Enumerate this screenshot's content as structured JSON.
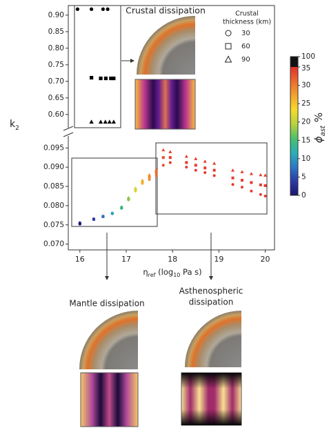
{
  "chart_data": {
    "type": "scatter",
    "annotations": [
      "Crustal dissipation",
      "Mantle dissipation",
      "Asthenospheric",
      "dissipation"
    ],
    "xlabel": [
      "η",
      "ref",
      " (log",
      "10",
      " Pa s)"
    ],
    "ylabel": [
      "k",
      "2"
    ],
    "xlim": [
      15.75,
      20.2
    ],
    "xticks": [
      16,
      17,
      18,
      19,
      20
    ],
    "legend": {
      "title": [
        "Crustal",
        "thickness (km)"
      ],
      "entries": [
        {
          "label": "30",
          "marker": "circle"
        },
        {
          "label": "60",
          "marker": "square"
        },
        {
          "label": "90",
          "marker": "triangle"
        }
      ]
    },
    "colorbar": {
      "label": [
        "ϕ",
        "ast",
        " %"
      ],
      "lim": [
        0,
        35
      ],
      "ticks": [
        0,
        5,
        10,
        15,
        20,
        25,
        30,
        35
      ],
      "top_tick": 100,
      "colors": [
        "#1b1670",
        "#2c3aa6",
        "#2d78c4",
        "#28b0b8",
        "#4cc06a",
        "#b8d23c",
        "#f5dc2a",
        "#f4a22c",
        "#ee6a2e",
        "#e2302a"
      ]
    },
    "panels": [
      {
        "ylim": [
          0.56,
          0.929
        ],
        "yticks": [
          {
            "value": 0.6,
            "label": "0.60"
          },
          0.65,
          {
            "value": 0.7,
            "label": "0.70"
          },
          0.75,
          {
            "value": 0.8,
            "label": "0.80"
          },
          0.85,
          {
            "value": 0.9,
            "label": "0.90"
          }
        ],
        "series": [
          {
            "marker": "circle",
            "color": "#000000",
            "x": [
              15.95,
              16.25,
              16.5,
              16.6
            ],
            "values": [
              0.918,
              0.918,
              0.918,
              0.918
            ]
          },
          {
            "marker": "square",
            "color": "#000000",
            "x": [
              16.25,
              16.45,
              16.56,
              16.67,
              16.73
            ],
            "values": [
              0.711,
              0.709,
              0.709,
              0.709,
              0.709
            ]
          },
          {
            "marker": "triangle",
            "color": "#000000",
            "x": [
              16.25,
              16.45,
              16.55,
              16.64,
              16.73
            ],
            "values": [
              0.578,
              0.578,
              0.578,
              0.578,
              0.578
            ]
          }
        ]
      },
      {
        "ylim": [
          0.0685,
          0.0981
        ],
        "yticks": [
          {
            "value": 0.07,
            "label": "0.070"
          },
          0.075,
          {
            "value": 0.08,
            "label": "0.080"
          },
          0.085,
          {
            "value": 0.09,
            "label": "0.090"
          },
          0.095
        ],
        "series": [
          {
            "marker": "circle",
            "x": [
              16,
              16.3,
              16.5,
              16.7,
              16.9,
              17.05,
              17.2,
              17.35,
              17.5,
              17.65,
              17.8,
              17.95,
              18.3,
              18.5,
              18.7,
              18.9,
              19.3,
              19.5,
              19.7,
              19.9,
              20
            ],
            "values": [
              0.0752,
              0.0764,
              0.0771,
              0.0779,
              0.0793,
              0.0815,
              0.0838,
              0.0858,
              0.0868,
              0.0878,
              0.0905,
              0.0912,
              0.09,
              0.0892,
              0.0886,
              0.0878,
              0.0855,
              0.0848,
              0.0838,
              0.0829,
              0.0825
            ],
            "colors": [
              "#1b1670",
              "#2c3aa6",
              "#2d6cc0",
              "#28a6bc",
              "#3cb67a",
              "#8cc84a",
              "#d8d43a",
              "#f2b030",
              "#f08a30",
              "#ee6a2e",
              "#e84a2a",
              "#e53a2a",
              "#e53a2a",
              "#e53a2a",
              "#e53a2a",
              "#e53a2a",
              "#e53a2a",
              "#e53a2a",
              "#e53a2a",
              "#e53a2a",
              "#e53a2a"
            ]
          },
          {
            "marker": "square",
            "x": [
              16,
              16.3,
              16.5,
              16.7,
              16.9,
              17.05,
              17.2,
              17.35,
              17.5,
              17.65,
              17.8,
              17.95,
              18.3,
              18.5,
              18.7,
              18.9,
              19.3,
              19.5,
              19.7,
              19.9,
              20
            ],
            "values": [
              0.0754,
              0.0765,
              0.0772,
              0.078,
              0.0795,
              0.0818,
              0.0842,
              0.0862,
              0.0874,
              0.0886,
              0.0925,
              0.0925,
              0.0912,
              0.0905,
              0.0898,
              0.0892,
              0.0872,
              0.0866,
              0.086,
              0.0854,
              0.0852
            ],
            "colors": [
              "#1b1670",
              "#2c3aa6",
              "#2d6cc0",
              "#28a6bc",
              "#3cb67a",
              "#8cc84a",
              "#d8d43a",
              "#f2b030",
              "#f08a30",
              "#ee6a2e",
              "#e84a2a",
              "#e53a2a",
              "#e53a2a",
              "#e53a2a",
              "#e53a2a",
              "#e53a2a",
              "#e53a2a",
              "#e53a2a",
              "#e53a2a",
              "#e53a2a",
              "#e53a2a"
            ]
          },
          {
            "marker": "triangle",
            "x": [
              16,
              16.3,
              16.5,
              16.7,
              16.9,
              17.05,
              17.2,
              17.35,
              17.5,
              17.65,
              17.8,
              17.95,
              18.3,
              18.5,
              18.7,
              18.9,
              19.3,
              19.5,
              19.7,
              19.9,
              20
            ],
            "values": [
              0.0756,
              0.0766,
              0.0773,
              0.0781,
              0.0797,
              0.0821,
              0.0846,
              0.0866,
              0.088,
              0.0894,
              0.0945,
              0.094,
              0.0928,
              0.0922,
              0.0915,
              0.091,
              0.0892,
              0.0888,
              0.0883,
              0.088,
              0.0879
            ],
            "colors": [
              "#1b1670",
              "#2c3aa6",
              "#2d6cc0",
              "#28a6bc",
              "#3cb67a",
              "#8cc84a",
              "#d8d43a",
              "#f2b030",
              "#f08a30",
              "#ee6a2e",
              "#e84a2a",
              "#e53a2a",
              "#e53a2a",
              "#e53a2a",
              "#e53a2a",
              "#e53a2a",
              "#e53a2a",
              "#e53a2a",
              "#e53a2a",
              "#e53a2a",
              "#e53a2a"
            ]
          }
        ]
      }
    ]
  }
}
